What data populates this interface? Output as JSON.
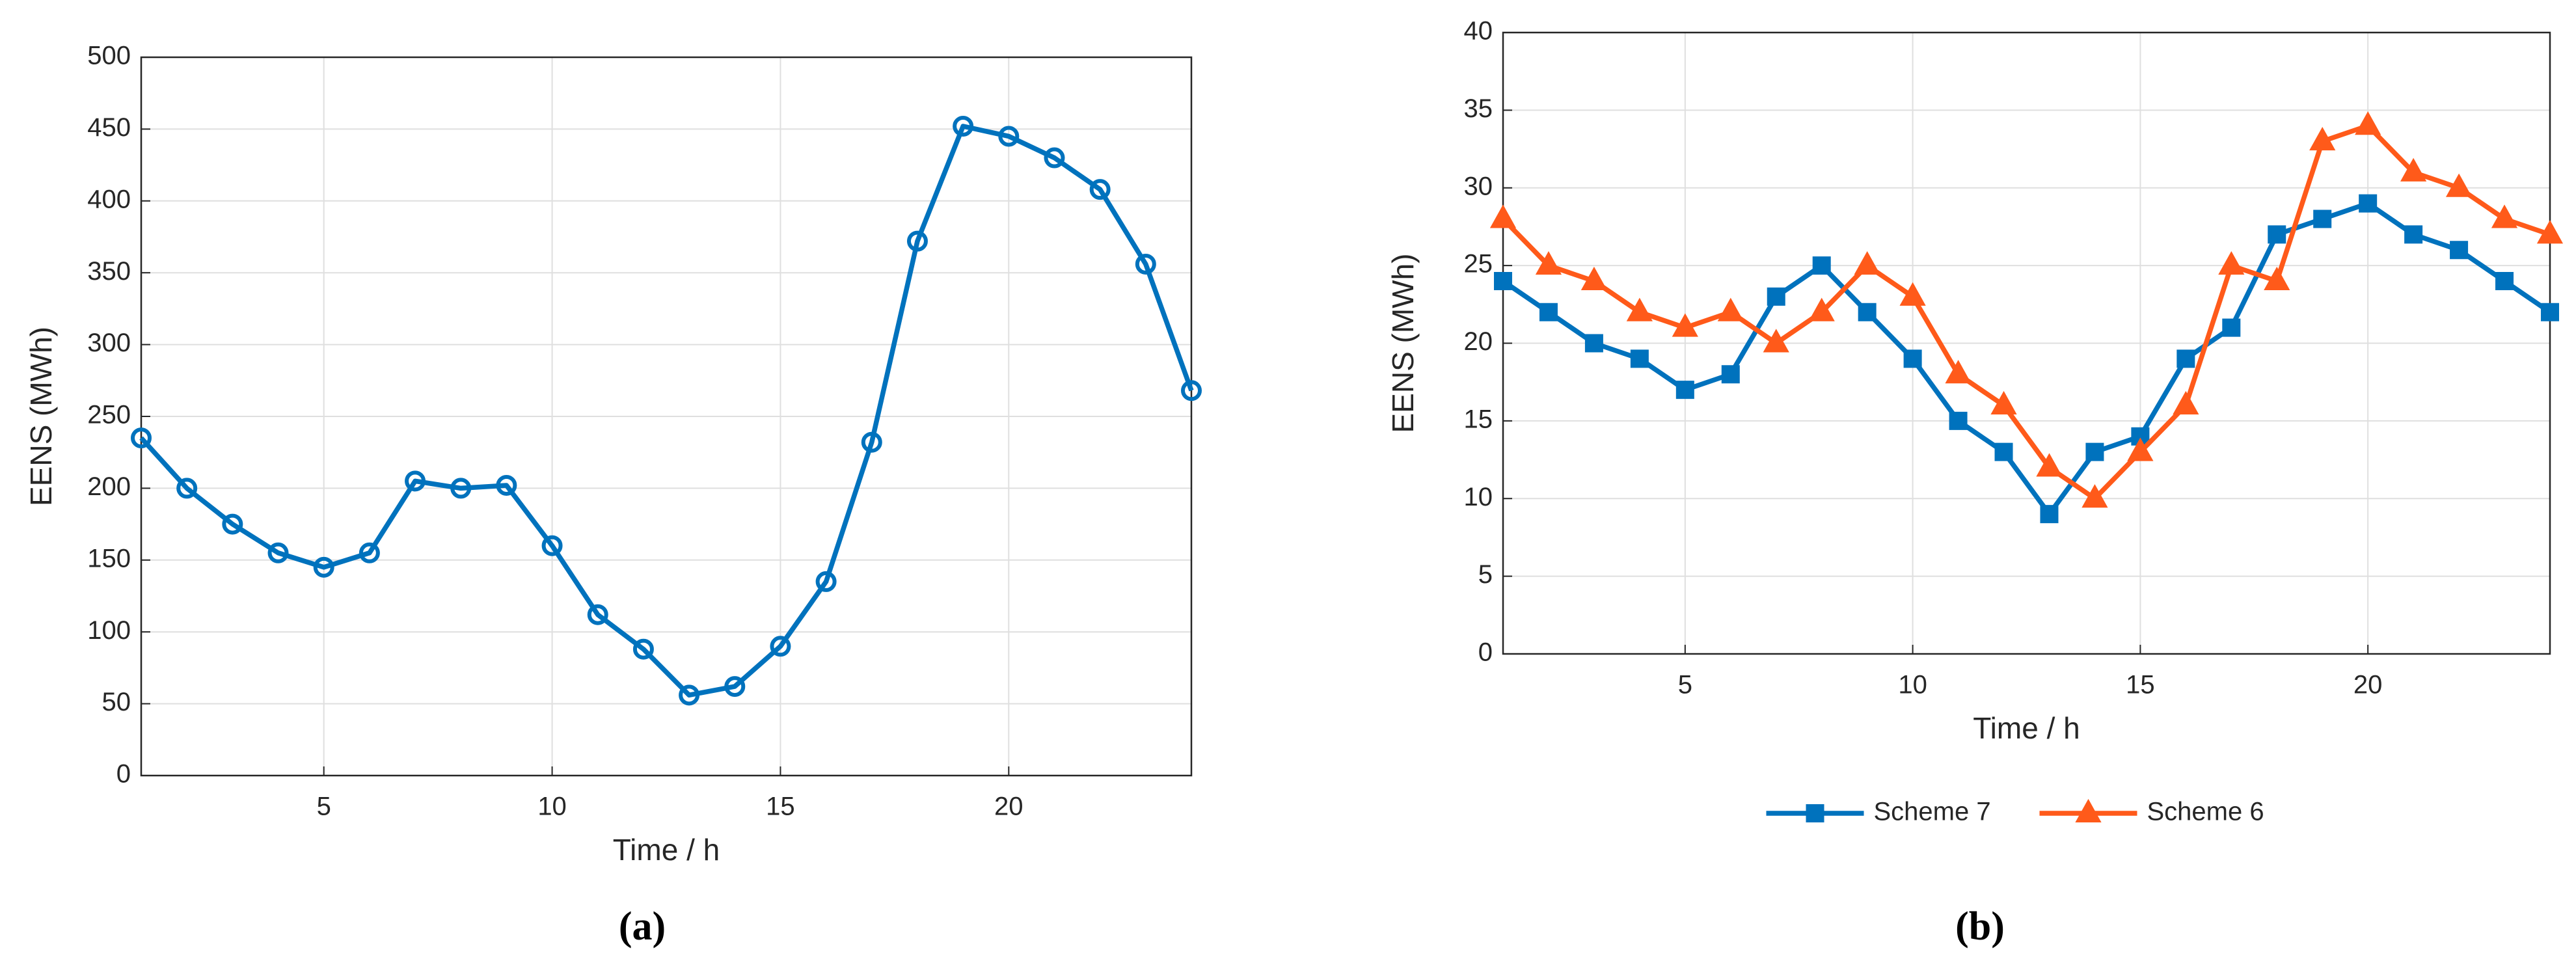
{
  "chart_data": [
    {
      "type": "line",
      "caption": "(a)",
      "xlabel": "Time / h",
      "ylabel": "EENS (MWh)",
      "x": [
        1,
        2,
        3,
        4,
        5,
        6,
        7,
        8,
        9,
        10,
        11,
        12,
        13,
        14,
        15,
        16,
        17,
        18,
        19,
        20,
        21,
        22,
        23,
        24
      ],
      "values": [
        235,
        200,
        175,
        155,
        145,
        155,
        205,
        200,
        202,
        160,
        112,
        88,
        56,
        62,
        90,
        135,
        232,
        372,
        452,
        445,
        430,
        408,
        356,
        268
      ],
      "color": "#0072bd",
      "marker": "circle",
      "xlim": [
        1,
        24
      ],
      "xticks": [
        5,
        10,
        15,
        20
      ],
      "ylim": [
        0,
        500
      ],
      "yticks": [
        0,
        50,
        100,
        150,
        200,
        250,
        300,
        350,
        400,
        450,
        500
      ],
      "grid": true
    },
    {
      "type": "line",
      "caption": "(b)",
      "xlabel": "Time / h",
      "ylabel": "EENS (MWh)",
      "x": [
        1,
        2,
        3,
        4,
        5,
        6,
        7,
        8,
        9,
        10,
        11,
        12,
        13,
        14,
        15,
        16,
        17,
        18,
        19,
        20,
        21,
        22,
        23,
        24
      ],
      "series": [
        {
          "name": "Scheme 7",
          "color": "#0072bd",
          "marker": "square",
          "values": [
            24,
            22,
            20,
            19,
            17,
            18,
            23,
            25,
            22,
            19,
            15,
            13,
            9,
            13,
            14,
            19,
            21,
            27,
            28,
            29,
            27,
            26,
            24,
            22
          ]
        },
        {
          "name": "Scheme 6",
          "color": "#ff5a1a",
          "marker": "triangle",
          "values": [
            28,
            25,
            24,
            22,
            21,
            22,
            20,
            22,
            25,
            23,
            18,
            16,
            12,
            10,
            13,
            16,
            25,
            24,
            33,
            34,
            31,
            30,
            28,
            27
          ]
        }
      ],
      "xlim": [
        1,
        24
      ],
      "xticks": [
        5,
        10,
        15,
        20
      ],
      "ylim": [
        0,
        40
      ],
      "yticks": [
        0,
        5,
        10,
        15,
        20,
        25,
        30,
        35,
        40
      ],
      "grid": true,
      "legend": "bottom"
    }
  ]
}
